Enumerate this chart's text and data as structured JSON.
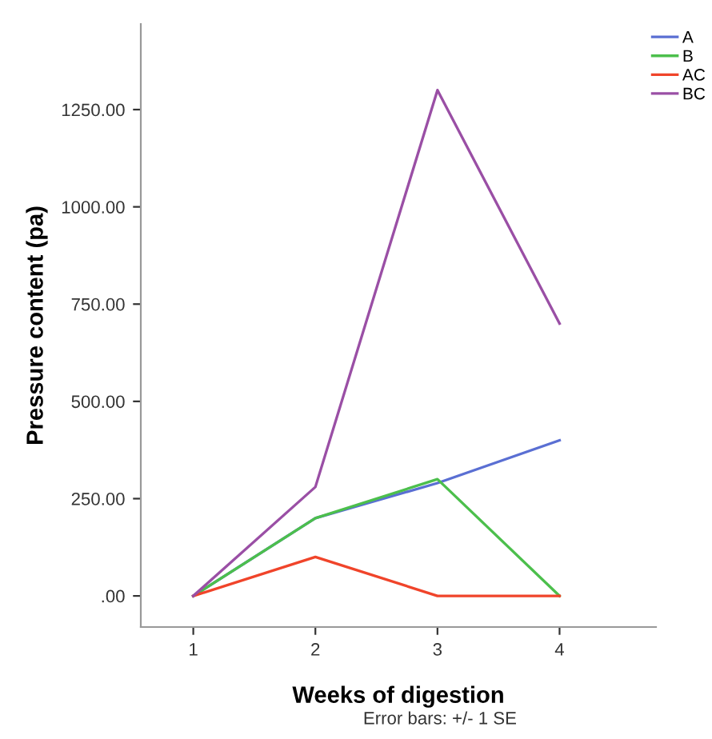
{
  "chart_data": {
    "type": "line",
    "xlabel": "Weeks of digestion",
    "ylabel": "Pressure content (pa)",
    "categories": [
      "1",
      "2",
      "3",
      "4"
    ],
    "series": [
      {
        "name": "A",
        "color": "#5a6fd3",
        "values": [
          0,
          200,
          290,
          400
        ]
      },
      {
        "name": "B",
        "color": "#4cbf4c",
        "values": [
          0,
          200,
          300,
          0
        ]
      },
      {
        "name": "AC",
        "color": "#f0442a",
        "values": [
          0,
          100,
          0,
          0
        ]
      },
      {
        "name": "BC",
        "color": "#9a4fa5",
        "values": [
          0,
          280,
          1300,
          700
        ]
      }
    ],
    "ylim": [
      -80,
      1470
    ],
    "yticks": [
      {
        "value": 0,
        "label": ".00"
      },
      {
        "value": 250,
        "label": "250.00"
      },
      {
        "value": 500,
        "label": "500.00"
      },
      {
        "value": 750,
        "label": "750.00"
      },
      {
        "value": 1000,
        "label": "1000.00"
      },
      {
        "value": 1250,
        "label": "1250.00"
      }
    ],
    "legend": "top right",
    "grid": false,
    "marker": "none",
    "line_style": "solid",
    "annotations": [
      "Error bars: +/- 1 SE"
    ]
  }
}
